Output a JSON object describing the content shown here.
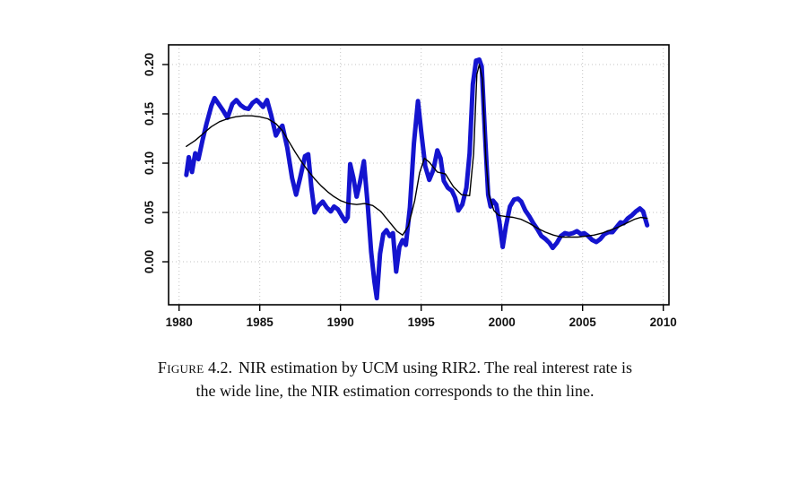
{
  "figure": {
    "caption_label": "Figure",
    "caption_number": "4.2.",
    "caption_line1_rest": "NIR estimation by UCM using RIR2. The real interest rate is",
    "caption_line2": "the wide line, the NIR estimation corresponds to the thin line."
  },
  "chart_data": {
    "type": "line",
    "title": "",
    "xlabel": "",
    "ylabel": "",
    "xlim": [
      1979.35,
      2010.35
    ],
    "ylim": [
      -0.0436,
      0.22
    ],
    "x_ticks": [
      1980,
      1985,
      1990,
      1995,
      2000,
      2005,
      2010
    ],
    "x_tick_labels": [
      "1980",
      "1985",
      "1990",
      "1995",
      "2000",
      "2005",
      "2010"
    ],
    "y_ticks": [
      0.0,
      0.05,
      0.1,
      0.15,
      0.2
    ],
    "y_tick_labels": [
      "0.00",
      "0.05",
      "0.10",
      "0.15",
      "0.20"
    ],
    "grid": {
      "show": true,
      "style": "dotted",
      "color": "#c3c3c3"
    },
    "legend": "none",
    "frame_color": "#000000",
    "series": [
      {
        "id": "rir-wide-line",
        "name": "real interest rate (RIR2) - wide line",
        "color": "#1414cf",
        "width": 5,
        "points": [
          [
            1980.45,
            0.088
          ],
          [
            1980.6,
            0.106
          ],
          [
            1980.8,
            0.091
          ],
          [
            1981.0,
            0.11
          ],
          [
            1981.2,
            0.104
          ],
          [
            1981.45,
            0.123
          ],
          [
            1981.7,
            0.14
          ],
          [
            1982.0,
            0.158
          ],
          [
            1982.2,
            0.166
          ],
          [
            1982.45,
            0.16
          ],
          [
            1982.7,
            0.154
          ],
          [
            1983.0,
            0.146
          ],
          [
            1983.3,
            0.16
          ],
          [
            1983.55,
            0.164
          ],
          [
            1983.8,
            0.159
          ],
          [
            1984.05,
            0.156
          ],
          [
            1984.3,
            0.155
          ],
          [
            1984.55,
            0.161
          ],
          [
            1984.8,
            0.164
          ],
          [
            1985.05,
            0.16
          ],
          [
            1985.2,
            0.157
          ],
          [
            1985.45,
            0.164
          ],
          [
            1985.7,
            0.149
          ],
          [
            1986.0,
            0.128
          ],
          [
            1986.2,
            0.134
          ],
          [
            1986.4,
            0.138
          ],
          [
            1986.7,
            0.116
          ],
          [
            1987.0,
            0.085
          ],
          [
            1987.25,
            0.068
          ],
          [
            1987.5,
            0.085
          ],
          [
            1987.8,
            0.107
          ],
          [
            1988.0,
            0.109
          ],
          [
            1988.2,
            0.075
          ],
          [
            1988.4,
            0.05
          ],
          [
            1988.65,
            0.057
          ],
          [
            1988.9,
            0.061
          ],
          [
            1989.15,
            0.055
          ],
          [
            1989.4,
            0.051
          ],
          [
            1989.6,
            0.056
          ],
          [
            1989.85,
            0.053
          ],
          [
            1990.1,
            0.046
          ],
          [
            1990.3,
            0.041
          ],
          [
            1990.45,
            0.045
          ],
          [
            1990.6,
            0.099
          ],
          [
            1990.8,
            0.085
          ],
          [
            1991.0,
            0.066
          ],
          [
            1991.2,
            0.08
          ],
          [
            1991.45,
            0.102
          ],
          [
            1991.7,
            0.055
          ],
          [
            1991.9,
            0.01
          ],
          [
            1992.1,
            -0.02
          ],
          [
            1992.25,
            -0.037
          ],
          [
            1992.45,
            0.008
          ],
          [
            1992.65,
            0.028
          ],
          [
            1992.85,
            0.032
          ],
          [
            1993.05,
            0.026
          ],
          [
            1993.25,
            0.029
          ],
          [
            1993.45,
            -0.01
          ],
          [
            1993.65,
            0.015
          ],
          [
            1993.85,
            0.022
          ],
          [
            1994.05,
            0.017
          ],
          [
            1994.3,
            0.055
          ],
          [
            1994.55,
            0.12
          ],
          [
            1994.8,
            0.163
          ],
          [
            1995.0,
            0.132
          ],
          [
            1995.25,
            0.097
          ],
          [
            1995.5,
            0.083
          ],
          [
            1995.75,
            0.093
          ],
          [
            1996.0,
            0.113
          ],
          [
            1996.2,
            0.105
          ],
          [
            1996.4,
            0.082
          ],
          [
            1996.65,
            0.075
          ],
          [
            1996.9,
            0.072
          ],
          [
            1997.1,
            0.065
          ],
          [
            1997.3,
            0.052
          ],
          [
            1997.55,
            0.058
          ],
          [
            1997.8,
            0.075
          ],
          [
            1998.0,
            0.11
          ],
          [
            1998.2,
            0.18
          ],
          [
            1998.4,
            0.204
          ],
          [
            1998.6,
            0.205
          ],
          [
            1998.75,
            0.198
          ],
          [
            1998.95,
            0.13
          ],
          [
            1999.15,
            0.068
          ],
          [
            1999.3,
            0.056
          ],
          [
            1999.45,
            0.062
          ],
          [
            1999.65,
            0.058
          ],
          [
            1999.85,
            0.04
          ],
          [
            2000.05,
            0.015
          ],
          [
            2000.25,
            0.036
          ],
          [
            2000.5,
            0.056
          ],
          [
            2000.75,
            0.063
          ],
          [
            2001.0,
            0.064
          ],
          [
            2001.2,
            0.061
          ],
          [
            2001.45,
            0.052
          ],
          [
            2001.7,
            0.046
          ],
          [
            2001.95,
            0.039
          ],
          [
            2002.2,
            0.033
          ],
          [
            2002.45,
            0.026
          ],
          [
            2002.7,
            0.023
          ],
          [
            2002.95,
            0.019
          ],
          [
            2003.15,
            0.014
          ],
          [
            2003.4,
            0.019
          ],
          [
            2003.65,
            0.026
          ],
          [
            2003.9,
            0.029
          ],
          [
            2004.15,
            0.028
          ],
          [
            2004.4,
            0.029
          ],
          [
            2004.65,
            0.031
          ],
          [
            2004.9,
            0.028
          ],
          [
            2005.1,
            0.029
          ],
          [
            2005.35,
            0.026
          ],
          [
            2005.6,
            0.022
          ],
          [
            2005.85,
            0.02
          ],
          [
            2006.1,
            0.023
          ],
          [
            2006.35,
            0.028
          ],
          [
            2006.6,
            0.03
          ],
          [
            2006.85,
            0.03
          ],
          [
            2007.1,
            0.035
          ],
          [
            2007.35,
            0.04
          ],
          [
            2007.55,
            0.039
          ],
          [
            2007.8,
            0.044
          ],
          [
            2008.05,
            0.047
          ],
          [
            2008.3,
            0.051
          ],
          [
            2008.55,
            0.054
          ],
          [
            2008.75,
            0.051
          ],
          [
            2009.0,
            0.037
          ]
        ]
      },
      {
        "id": "nir-thin-line",
        "name": "NIR estimation (UCM) - thin line",
        "color": "#000000",
        "width": 1.4,
        "points": [
          [
            1980.45,
            0.117
          ],
          [
            1981.0,
            0.123
          ],
          [
            1981.5,
            0.13
          ],
          [
            1982.0,
            0.137
          ],
          [
            1982.5,
            0.142
          ],
          [
            1983.0,
            0.145
          ],
          [
            1983.5,
            0.147
          ],
          [
            1984.0,
            0.148
          ],
          [
            1984.5,
            0.148
          ],
          [
            1985.0,
            0.147
          ],
          [
            1985.5,
            0.145
          ],
          [
            1986.0,
            0.14
          ],
          [
            1986.4,
            0.133
          ],
          [
            1986.8,
            0.122
          ],
          [
            1987.2,
            0.111
          ],
          [
            1987.6,
            0.101
          ],
          [
            1988.0,
            0.092
          ],
          [
            1988.4,
            0.084
          ],
          [
            1988.8,
            0.077
          ],
          [
            1989.2,
            0.071
          ],
          [
            1989.6,
            0.066
          ],
          [
            1990.0,
            0.062
          ],
          [
            1990.5,
            0.059
          ],
          [
            1991.0,
            0.058
          ],
          [
            1991.5,
            0.059
          ],
          [
            1992.0,
            0.057
          ],
          [
            1992.5,
            0.051
          ],
          [
            1993.0,
            0.041
          ],
          [
            1993.5,
            0.031
          ],
          [
            1993.85,
            0.027
          ],
          [
            1994.2,
            0.036
          ],
          [
            1994.6,
            0.062
          ],
          [
            1994.9,
            0.09
          ],
          [
            1995.2,
            0.105
          ],
          [
            1995.5,
            0.101
          ],
          [
            1996.0,
            0.091
          ],
          [
            1996.5,
            0.089
          ],
          [
            1997.0,
            0.076
          ],
          [
            1997.5,
            0.068
          ],
          [
            1998.0,
            0.067
          ],
          [
            1998.25,
            0.11
          ],
          [
            1998.45,
            0.19
          ],
          [
            1998.6,
            0.2
          ],
          [
            1998.8,
            0.185
          ],
          [
            1999.0,
            0.105
          ],
          [
            1999.2,
            0.068
          ],
          [
            1999.5,
            0.052
          ],
          [
            1999.8,
            0.047
          ],
          [
            2000.2,
            0.046
          ],
          [
            2000.7,
            0.045
          ],
          [
            2001.2,
            0.043
          ],
          [
            2001.7,
            0.039
          ],
          [
            2002.2,
            0.034
          ],
          [
            2002.7,
            0.03
          ],
          [
            2003.2,
            0.027
          ],
          [
            2003.7,
            0.025
          ],
          [
            2004.2,
            0.025
          ],
          [
            2004.7,
            0.025
          ],
          [
            2005.2,
            0.026
          ],
          [
            2005.7,
            0.027
          ],
          [
            2006.2,
            0.029
          ],
          [
            2006.7,
            0.032
          ],
          [
            2007.2,
            0.035
          ],
          [
            2007.7,
            0.039
          ],
          [
            2008.2,
            0.043
          ],
          [
            2008.6,
            0.045
          ],
          [
            2009.0,
            0.044
          ]
        ]
      }
    ]
  }
}
